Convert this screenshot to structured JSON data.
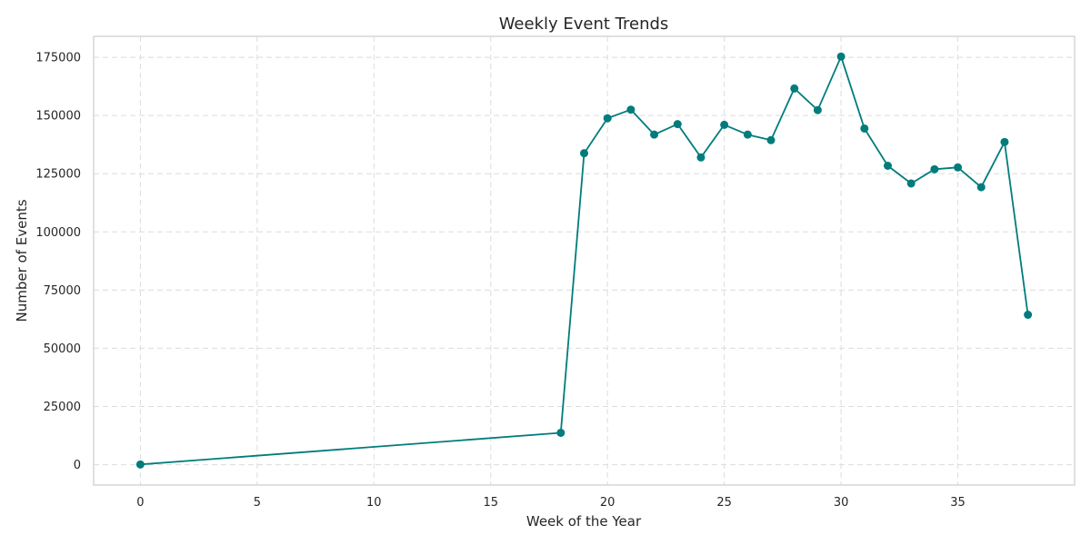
{
  "chart_data": {
    "type": "line",
    "title": "Weekly Event Trends",
    "xlabel": "Week of the Year",
    "ylabel": "Number of Events",
    "xlim": [
      -2,
      40
    ],
    "ylim": [
      -8750,
      184000
    ],
    "xticks": [
      0,
      5,
      10,
      15,
      20,
      25,
      30,
      35
    ],
    "yticks": [
      0,
      25000,
      50000,
      75000,
      100000,
      125000,
      150000,
      175000
    ],
    "grid": true,
    "color": "#007c7c",
    "series": [
      {
        "x": [
          0,
          18,
          19,
          20,
          21,
          22,
          23,
          24,
          25,
          26,
          27,
          28,
          29,
          30,
          31,
          32,
          33,
          34,
          35,
          36,
          37,
          38
        ],
        "y": [
          100,
          13700,
          133800,
          148800,
          152500,
          141800,
          146300,
          132000,
          146000,
          141800,
          139400,
          161600,
          152300,
          175300,
          144400,
          128400,
          120800,
          126900,
          127700,
          119200,
          138600,
          64400
        ]
      }
    ]
  }
}
